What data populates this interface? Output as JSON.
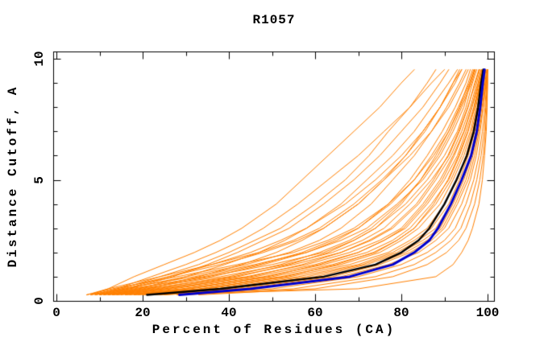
{
  "title": "R1057",
  "axes": {
    "x": {
      "label": "Percent of Residues (CA)",
      "min": 0,
      "max": 100,
      "major_ticks": [
        0,
        20,
        40,
        60,
        80,
        100
      ],
      "minor_ticks": [
        10,
        30,
        50,
        70,
        90
      ],
      "tick_labels": [
        "0",
        "20",
        "40",
        "60",
        "80",
        "100"
      ]
    },
    "y": {
      "label": "Distance Cutoff, A",
      "min": 0,
      "max": 10,
      "major_ticks": [
        0,
        5,
        10
      ],
      "minor_ticks": [
        1,
        2,
        3,
        4,
        6,
        7,
        8,
        9
      ],
      "tick_labels": [
        "0",
        "5",
        "10"
      ]
    }
  },
  "colors": {
    "ensemble": "#FF8000",
    "highlight_blue": "#0000CD",
    "highlight_black": "#000000",
    "frame": "#000000",
    "background": "#FFFFFF"
  },
  "chart_data": {
    "type": "line",
    "title": "R1057",
    "xlabel": "Percent of Residues (CA)",
    "ylabel": "Distance Cutoff, A",
    "xlim": [
      0,
      101.5
    ],
    "ylim": [
      0,
      10.3
    ],
    "grid": false,
    "legend": "none",
    "y_levels": [
      0.25,
      0.5,
      1,
      1.5,
      2,
      2.5,
      3,
      4,
      5,
      6,
      7,
      8,
      9,
      9.55
    ],
    "ensemble_series_x": [
      [
        8,
        12,
        18,
        25,
        32,
        38,
        43,
        51,
        57,
        63,
        69,
        75,
        80,
        83
      ],
      [
        10,
        15,
        24,
        33,
        40,
        46,
        52,
        60,
        67,
        72.5,
        77,
        82,
        86,
        88
      ],
      [
        9,
        14,
        22,
        30,
        37,
        43,
        48,
        56,
        63,
        70,
        76,
        82,
        87,
        90
      ],
      [
        11,
        17,
        27,
        35,
        42,
        48,
        54,
        62,
        69,
        75,
        80,
        85,
        89,
        91
      ],
      [
        12,
        19,
        30,
        39,
        47,
        53,
        58,
        66,
        72,
        78,
        83,
        87,
        91,
        93
      ],
      [
        10,
        16,
        26,
        36,
        45,
        52,
        58,
        67,
        74,
        80,
        85,
        89,
        92,
        94
      ],
      [
        13,
        21,
        33,
        43,
        51,
        57,
        62,
        70,
        76,
        82,
        87,
        91,
        94,
        95.5
      ],
      [
        8,
        14,
        26,
        38,
        48,
        56,
        62,
        70,
        76,
        81,
        85.5,
        89,
        92.5,
        94
      ],
      [
        9,
        16,
        30,
        44,
        54,
        61,
        66,
        73,
        78,
        83,
        87,
        90.5,
        93.5,
        95
      ],
      [
        11,
        20,
        36,
        48,
        58,
        65,
        70,
        77,
        82,
        86,
        89.5,
        92.5,
        95,
        96
      ],
      [
        13,
        24,
        42,
        54,
        63,
        69,
        74,
        80,
        84.5,
        88,
        91,
        93.7,
        96,
        97
      ],
      [
        7,
        12,
        24,
        36,
        47,
        55,
        61,
        69,
        75.5,
        81,
        85,
        89,
        92,
        93.5
      ],
      [
        10,
        18,
        34,
        47,
        57,
        64,
        70,
        77.5,
        83,
        87,
        90.5,
        93.2,
        95.8,
        96.8
      ],
      [
        12,
        22,
        40,
        52,
        61,
        68,
        73,
        79.5,
        84.5,
        88.5,
        91.5,
        94,
        96.3,
        97.2
      ],
      [
        14,
        26,
        45,
        57,
        66,
        72.5,
        77.5,
        83.5,
        87.5,
        90.8,
        93.3,
        95.4,
        97.2,
        98
      ],
      [
        16,
        30,
        49,
        61,
        70,
        76,
        80.5,
        85.5,
        89.5,
        92.3,
        94.6,
        96.4,
        97.9,
        98.6
      ],
      [
        18,
        34,
        53,
        65,
        73.5,
        79,
        83,
        87.5,
        90.8,
        93.3,
        95.4,
        97,
        98.4,
        99
      ],
      [
        7,
        13,
        28,
        42,
        55,
        63,
        69,
        77,
        83,
        87.5,
        91,
        93.5,
        95.5,
        96.5
      ],
      [
        8,
        15,
        32,
        46,
        58,
        66,
        72,
        79,
        85,
        89,
        92,
        94.5,
        96,
        97
      ],
      [
        9,
        17,
        35,
        50,
        62,
        69,
        74,
        81,
        86,
        90,
        93,
        95,
        96.5,
        97.5
      ],
      [
        10,
        19,
        38,
        53,
        64,
        71,
        76,
        82,
        87,
        91,
        93.5,
        95.5,
        97,
        98
      ],
      [
        11,
        21,
        41,
        55,
        66,
        73,
        78,
        84,
        88,
        91.5,
        94,
        96,
        97.5,
        98.2
      ],
      [
        12,
        23,
        44,
        58,
        68,
        75,
        80,
        85,
        89,
        92,
        94.5,
        96.3,
        97.8,
        98.5
      ],
      [
        13,
        25,
        46,
        60,
        70,
        76,
        81,
        86,
        90,
        93,
        95,
        96.8,
        98,
        98.7
      ],
      [
        14,
        27,
        48,
        62,
        72,
        78,
        82,
        87,
        91,
        93.5,
        95.5,
        97,
        98.2,
        98.9
      ],
      [
        15,
        29,
        50,
        64,
        74,
        79,
        83,
        88,
        91.5,
        94,
        96,
        97.3,
        98.4,
        99
      ],
      [
        16,
        31,
        52,
        66,
        75,
        80,
        84,
        89,
        92,
        94.5,
        96.3,
        97.6,
        98.6,
        99.1
      ],
      [
        17,
        33,
        54,
        68,
        77,
        82,
        86,
        90,
        93,
        95,
        96.6,
        97.8,
        98.8,
        99.3
      ],
      [
        18,
        35,
        56,
        70,
        78,
        83,
        87,
        91,
        93.5,
        95.5,
        97,
        98,
        99,
        99.5
      ],
      [
        19,
        37,
        58,
        71,
        79,
        84,
        88,
        91.5,
        94,
        96,
        97.3,
        98.3,
        99.2,
        99.6
      ],
      [
        20,
        39,
        60,
        72,
        80,
        85,
        89,
        92,
        94.5,
        96.3,
        97.6,
        98.5,
        99.4,
        99.8
      ],
      [
        22,
        41,
        62,
        74,
        81,
        86,
        89.5,
        92.5,
        95,
        96.6,
        97.8,
        98.7,
        99.5,
        100
      ],
      [
        24,
        43,
        64,
        75,
        82,
        87,
        90,
        93,
        95.5,
        97,
        98,
        99,
        99.7,
        100
      ],
      [
        25,
        45,
        66,
        77,
        84,
        88,
        91,
        94,
        96,
        97.4,
        98.3,
        99,
        99.6,
        100
      ],
      [
        28,
        50,
        70,
        80,
        86,
        90,
        92.5,
        95,
        96.8,
        98,
        98.8,
        99.4,
        99.8,
        100
      ],
      [
        30,
        55,
        74,
        83,
        88,
        91.5,
        93.8,
        96,
        97.5,
        98.5,
        99.2,
        99.6,
        99.9,
        100
      ],
      [
        33,
        60,
        78,
        86,
        90.5,
        93.3,
        95,
        97,
        98.2,
        99,
        99.5,
        99.8,
        100,
        100
      ],
      [
        22,
        70,
        88,
        92,
        94,
        95.5,
        96.5,
        98,
        98.8,
        99.3,
        99.7,
        99.9,
        100,
        100
      ]
    ],
    "highlight_black_x": [
      21,
      38,
      62,
      74,
      80,
      84,
      86.5,
      90,
      92.8,
      95.2,
      96.8,
      97.8,
      98.5,
      99.0
    ],
    "highlight_blue_x": [
      28.5,
      45,
      68,
      78,
      83,
      86.5,
      88.5,
      91.5,
      94,
      96.2,
      97.5,
      98.3,
      98.9,
      99.3
    ]
  }
}
